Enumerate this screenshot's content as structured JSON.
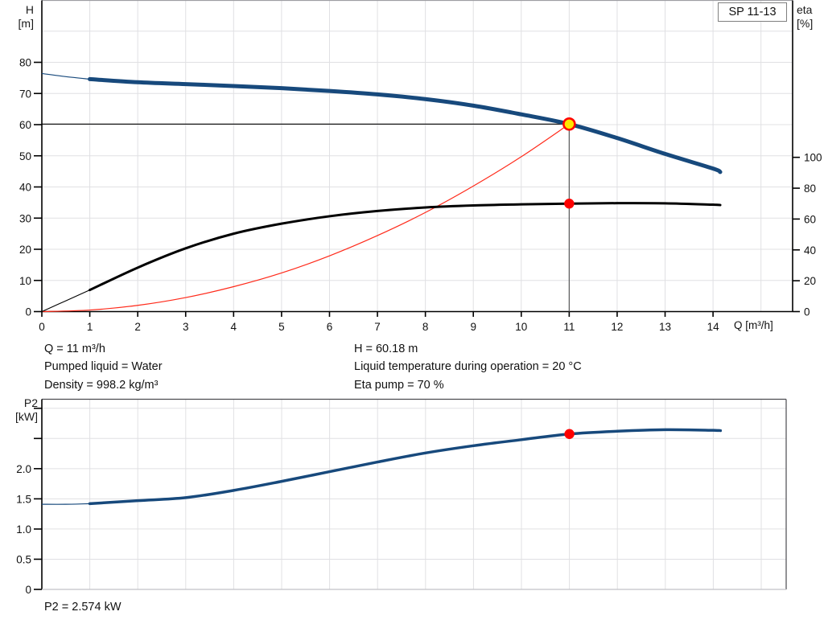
{
  "model_box": {
    "label": "SP 11-13"
  },
  "axes_titles": {
    "head_line1": "H",
    "head_line2": "[m]",
    "eta_line1": "eta",
    "eta_line2": "[%]",
    "flow": "Q [m³/h]",
    "power_line1": "P2",
    "power_line2": "[kW]"
  },
  "conditions": {
    "left": [
      "Q = 11 m³/h",
      "Pumped liquid = Water",
      "Density = 998.2 kg/m³"
    ],
    "right": [
      "H = 60.18 m",
      "Liquid temperature during operation = 20 °C",
      "Eta pump = 70 %"
    ]
  },
  "footer": {
    "p2_result": "P2 = 2.574 kW"
  },
  "colors": {
    "curve_blue": "#17497c",
    "curve_black": "#000000",
    "system_red": "#ff2a1a",
    "marker_yellow": "#ffe600",
    "marker_red": "#ff0000",
    "grid": "#e0e0e3",
    "axis": "#000000",
    "top_border_light": "#9e9ea3",
    "frame_dark": "#4b4b50",
    "frame_light": "#c2c2c6",
    "ref_gray": "#58595b",
    "text": "#111111"
  },
  "chart_data": [
    {
      "type": "line",
      "title": "SP 11-13 pump performance curve",
      "xlabel": "Q [m³/h]",
      "ylabel": "H [m]",
      "y2label": "eta [%]",
      "xlim": [
        0,
        15.66
      ],
      "ylim": [
        0,
        100
      ],
      "y2lim": [
        0,
        202
      ],
      "x_ticks": [
        0,
        1,
        2,
        3,
        4,
        5,
        6,
        7,
        8,
        9,
        10,
        11,
        12,
        13,
        14
      ],
      "x_grid": [
        1,
        2,
        3,
        4,
        5,
        6,
        7,
        8,
        9,
        10,
        11,
        12,
        13,
        14,
        15
      ],
      "y_ticks": [
        0,
        10,
        20,
        30,
        40,
        50,
        60,
        70,
        80
      ],
      "y_grid": [
        10,
        20,
        30,
        40,
        50,
        60,
        70,
        80,
        90
      ],
      "y2_ticks": [
        0,
        20,
        40,
        60,
        80,
        100
      ],
      "grid_on": true,
      "legend": "none",
      "series": [
        {
          "name": "system-curve",
          "axis": "y",
          "color": "#ff2a1a",
          "width": 1.2,
          "points": [
            [
              0,
              0
            ],
            [
              1,
              0.5
            ],
            [
              2,
              2.0
            ],
            [
              3,
              4.5
            ],
            [
              4,
              8.0
            ],
            [
              5,
              12.4
            ],
            [
              6,
              17.9
            ],
            [
              7,
              24.4
            ],
            [
              8,
              31.8
            ],
            [
              9,
              40.3
            ],
            [
              10,
              49.7
            ],
            [
              11,
              60.18
            ]
          ]
        },
        {
          "name": "efficiency-curve",
          "axis": "y2",
          "color": "#000000",
          "width": 3,
          "thin_until": 1,
          "thin_width": 1.1,
          "points": [
            [
              0,
              0
            ],
            [
              0.5,
              7
            ],
            [
              1,
              14
            ],
            [
              2,
              28.5
            ],
            [
              3,
              41
            ],
            [
              4,
              50.5
            ],
            [
              5,
              57
            ],
            [
              6,
              61.8
            ],
            [
              7,
              65.2
            ],
            [
              8,
              67.5
            ],
            [
              9,
              68.8
            ],
            [
              10,
              69.5
            ],
            [
              11,
              70
            ],
            [
              12,
              70.3
            ],
            [
              13,
              70.2
            ],
            [
              14,
              69.3
            ],
            [
              14.15,
              69.1
            ]
          ]
        },
        {
          "name": "pump-curve",
          "axis": "y",
          "color": "#17497c",
          "width": 5,
          "thin_until": 1,
          "thin_width": 1.2,
          "points": [
            [
              0,
              76.4
            ],
            [
              0.5,
              75.4
            ],
            [
              1,
              74.6
            ],
            [
              2,
              73.6
            ],
            [
              3,
              73.0
            ],
            [
              4,
              72.4
            ],
            [
              5,
              71.7
            ],
            [
              6,
              70.8
            ],
            [
              7,
              69.7
            ],
            [
              8,
              68.2
            ],
            [
              9,
              66.1
            ],
            [
              10,
              63.3
            ],
            [
              11,
              60.18
            ],
            [
              12,
              55.7
            ],
            [
              13,
              50.6
            ],
            [
              14,
              45.9
            ],
            [
              14.15,
              44.8
            ]
          ]
        }
      ],
      "ref_lines": [
        {
          "kind": "h",
          "v": 60.18,
          "q1": 0,
          "q2": 11,
          "color": "#000000",
          "width": 1.2,
          "name": "head-reference-line"
        },
        {
          "kind": "v",
          "q": 11,
          "v1": 0,
          "v2": 60.18,
          "color": "#58595b",
          "width": 1.2,
          "name": "flow-reference-line"
        }
      ],
      "markers": [
        {
          "name": "duty-point",
          "q": 11,
          "v": 60.18,
          "axis": "y",
          "fill": "#ffe600",
          "stroke": "#ff0000",
          "stroke_width": 2.6,
          "r": 7,
          "interactable": true
        },
        {
          "name": "efficiency-point",
          "q": 11,
          "v": 70,
          "axis": "y2",
          "fill": "#ff0000",
          "stroke": "none",
          "stroke_width": 0,
          "r": 6.2,
          "interactable": true
        }
      ]
    },
    {
      "type": "line",
      "title": "Power consumption P2",
      "xlabel": "",
      "ylabel": "P2 [kW]",
      "xlim": [
        0,
        15.52
      ],
      "ylim": [
        0,
        3.15
      ],
      "x_ticks": [],
      "x_grid": [
        1,
        2,
        3,
        4,
        5,
        6,
        7,
        8,
        9,
        10,
        11,
        12,
        13,
        14,
        15
      ],
      "y_tick_values": [
        0,
        0.5,
        1.0,
        1.5,
        2.0,
        2.5,
        3.0
      ],
      "y_tick_labels": [
        "0",
        "0.5",
        "1.0",
        "1.5",
        "2.0",
        "",
        ""
      ],
      "y_grid": [
        0.5,
        1.0,
        1.5,
        2.0,
        2.5,
        3.0
      ],
      "grid_on": true,
      "legend": "none",
      "series": [
        {
          "name": "power-curve",
          "axis": "y",
          "color": "#17497c",
          "width": 3.5,
          "thin_until": 1,
          "thin_width": 1.2,
          "points": [
            [
              0,
              1.41
            ],
            [
              0.5,
              1.41
            ],
            [
              1,
              1.42
            ],
            [
              2,
              1.47
            ],
            [
              3,
              1.52
            ],
            [
              4,
              1.64
            ],
            [
              5,
              1.79
            ],
            [
              6,
              1.95
            ],
            [
              7,
              2.11
            ],
            [
              8,
              2.26
            ],
            [
              9,
              2.38
            ],
            [
              10,
              2.48
            ],
            [
              11,
              2.574
            ],
            [
              12,
              2.62
            ],
            [
              13,
              2.645
            ],
            [
              14,
              2.635
            ],
            [
              14.15,
              2.63
            ]
          ]
        }
      ],
      "ref_lines": [],
      "markers": [
        {
          "name": "power-point",
          "q": 11,
          "v": 2.574,
          "axis": "y",
          "fill": "#ff0000",
          "stroke": "none",
          "stroke_width": 0,
          "r": 6.2,
          "interactable": true
        }
      ]
    }
  ]
}
